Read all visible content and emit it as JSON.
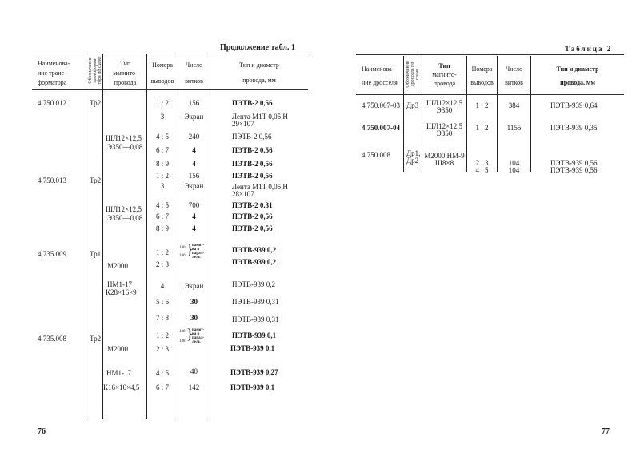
{
  "left_page": {
    "caption": "Продолжение табл. 1",
    "page_number": "76",
    "headers": {
      "name": [
        "Наименова-",
        "ние транс-",
        "форматора"
      ],
      "designation": [
        "Обозначение",
        "трансформа-",
        "тора по схеме"
      ],
      "core": [
        "Тип",
        "магнито-",
        "провода"
      ],
      "terminals": [
        "Номера",
        "выводов"
      ],
      "turns": [
        "Число",
        "витков"
      ],
      "wire": [
        "Тип и диаметр",
        "провода, мм"
      ]
    },
    "names": [
      "4.750.012",
      "4.750.013",
      "4.735.009",
      "4.735.008"
    ],
    "designations": [
      "Тр2",
      "Тр2",
      "Тр1",
      "Тр2"
    ],
    "cores": [
      "ШЛ12×12,5",
      "Э350—0,08",
      "ШЛ12×12,5",
      "Э350—0,08",
      "М2000",
      "НМ1-17",
      "К28×16×9",
      "М2000",
      "НМ1-17",
      "К16×10×4,5"
    ],
    "terminals": [
      "1 : 2",
      "3",
      "4 : 5",
      "6 : 7",
      "8 : 9",
      "1 : 2",
      "3",
      "4 : 5",
      "6 : 7",
      "8 : 9",
      "1 : 2",
      "2 : 3",
      "4",
      "5 : 6",
      "7 : 8",
      "1 : 2",
      "2 : 3",
      "4 : 5",
      "6 : 7"
    ],
    "turns": [
      "156",
      "Экран",
      "240",
      "4",
      "4",
      "156",
      "Экран",
      "700",
      "4",
      "4",
      "140",
      "140",
      "Экран",
      "30",
      "30",
      "138",
      "138",
      "40",
      "142"
    ],
    "parallel_note": [
      "намот-",
      "ка в",
      "парал-",
      "лель"
    ],
    "wires": [
      "ПЭТВ-2 0,56",
      "Лента М1Т 0,05 Н",
      "29×107",
      "ПЭТВ-2 0,56",
      "ПЭТВ-2 0,56",
      "ПЭТВ-2 0,56",
      "ПЭТВ-2 0,56",
      "Лента М1Т 0,05 Н",
      "28×107",
      "ПЭТВ-2 0,31",
      "ПЭТВ-2 0,56",
      "ПЭТВ-2 0,56",
      "ПЭТВ-939 0,2",
      "ПЭТВ-939 0,2",
      "ПЭТВ-939 0,2",
      "ПЭТВ-939 0,31",
      "ПЭТВ-939 0,31",
      "ПЭТВ-939 0,1",
      "ПЭТВ-939 0,1",
      "ПЭТВ-939 0,27",
      "ПЭТВ-939 0,1"
    ]
  },
  "right_page": {
    "caption": "Таблица 2",
    "page_number": "77",
    "headers": {
      "name": [
        "Наименова-",
        "ние дросселя"
      ],
      "designation": [
        "Обозначение",
        "дросселя по",
        "схеме"
      ],
      "core": [
        "Тип",
        "магнито-",
        "провода"
      ],
      "terminals": [
        "Номера",
        "выводов"
      ],
      "turns": [
        "Число",
        "витков"
      ],
      "wire": [
        "Тип и диаметр",
        "провода, мм"
      ]
    },
    "names": [
      "4.750.007-03",
      "4.750.007-04",
      "4.750.008"
    ],
    "designations": [
      "Др3",
      "Др1,",
      "Др2"
    ],
    "cores": [
      "ШЛ12×12,5",
      "Э350",
      "ШЛ12×12,5",
      "Э350",
      "М2000 НМ-9",
      "Ш8×8"
    ],
    "terminals": [
      "1 : 2",
      "1 : 2",
      "2 : 3",
      "4 : 5"
    ],
    "turns": [
      "384",
      "1155",
      "104",
      "104"
    ],
    "wires": [
      "ПЭТВ-939 0,64",
      "ПЭТВ-939 0,35",
      "ПЭТВ-939 0,56",
      "ПЭТВ-939 0,56"
    ]
  }
}
